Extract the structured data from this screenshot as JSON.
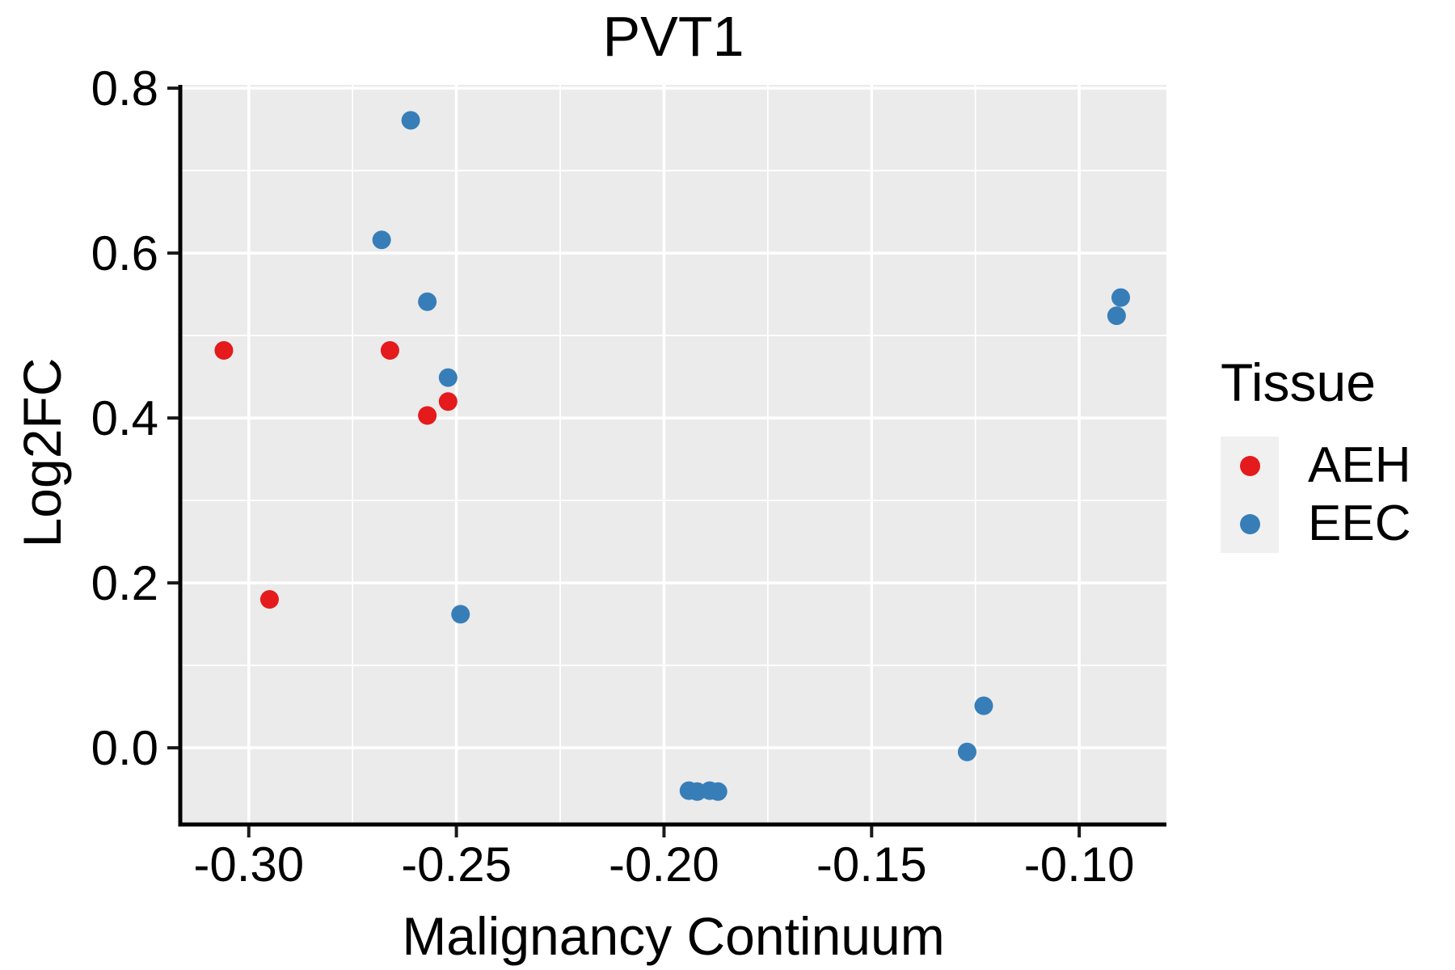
{
  "chart_data": {
    "type": "scatter",
    "title": "PVT1",
    "xlabel": "Malignancy Continuum",
    "ylabel": "Log2FC",
    "x_domain": [
      -0.3165,
      -0.079
    ],
    "y_domain": [
      -0.093,
      0.804
    ],
    "x_ticks": [
      {
        "value": -0.3,
        "label": "-0.30"
      },
      {
        "value": -0.25,
        "label": "-0.25"
      },
      {
        "value": -0.2,
        "label": "-0.20"
      },
      {
        "value": -0.15,
        "label": "-0.15"
      },
      {
        "value": -0.1,
        "label": "-0.10"
      }
    ],
    "y_ticks": [
      {
        "value": 0.0,
        "label": "0.0"
      },
      {
        "value": 0.2,
        "label": "0.2"
      },
      {
        "value": 0.4,
        "label": "0.4"
      },
      {
        "value": 0.6,
        "label": "0.6"
      },
      {
        "value": 0.8,
        "label": "0.8"
      }
    ],
    "x_minor_ticks": [
      -0.275,
      -0.225,
      -0.175,
      -0.125
    ],
    "y_minor_ticks": [
      0.1,
      0.3,
      0.5,
      0.7
    ],
    "grid": "major and minor white gridlines on grey panel",
    "panel_bg": "#EBEBEB",
    "grid_color": "#FFFFFF",
    "axis_color": "#000000",
    "marker_radius_px": 11.5,
    "legend": {
      "title": "Tissue",
      "position": "right",
      "items": [
        {
          "label": "AEH",
          "color": "#E41A1C"
        },
        {
          "label": "EEC",
          "color": "#377EB8"
        }
      ]
    },
    "series": [
      {
        "name": "AEH",
        "color": "#E41A1C",
        "points": [
          [
            -0.306,
            0.482
          ],
          [
            -0.295,
            0.18
          ],
          [
            -0.266,
            0.482
          ],
          [
            -0.257,
            0.403
          ],
          [
            -0.252,
            0.42
          ]
        ]
      },
      {
        "name": "EEC",
        "color": "#377EB8",
        "points": [
          [
            -0.268,
            0.616
          ],
          [
            -0.261,
            0.761
          ],
          [
            -0.257,
            0.541
          ],
          [
            -0.252,
            0.449
          ],
          [
            -0.249,
            0.162
          ],
          [
            -0.194,
            -0.052
          ],
          [
            -0.192,
            -0.053
          ],
          [
            -0.189,
            -0.052
          ],
          [
            -0.187,
            -0.053
          ],
          [
            -0.127,
            -0.005
          ],
          [
            -0.123,
            0.051
          ],
          [
            -0.091,
            0.524
          ],
          [
            -0.09,
            0.546
          ]
        ]
      }
    ]
  }
}
